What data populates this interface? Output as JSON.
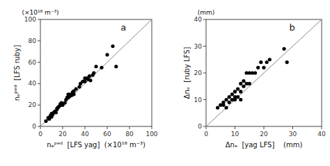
{
  "chart_data": [
    {
      "type": "scatter",
      "x": [
        5,
        7,
        8,
        9,
        10,
        10,
        11,
        12,
        13,
        14,
        15,
        15,
        16,
        17,
        18,
        18,
        19,
        20,
        22,
        23,
        24,
        25,
        25,
        26,
        27,
        28,
        29,
        30,
        30,
        32,
        35,
        36,
        38,
        40,
        40,
        42,
        43,
        44,
        45,
        47,
        48,
        50,
        55,
        60,
        65,
        68
      ],
      "values": [
        5,
        8,
        7,
        10,
        9,
        12,
        11,
        13,
        14,
        13,
        17,
        16,
        18,
        19,
        20,
        21,
        22,
        20,
        22,
        25,
        27,
        27,
        30,
        28,
        30,
        29,
        32,
        30,
        33,
        35,
        37,
        40,
        42,
        42,
        45,
        45,
        44,
        47,
        43,
        48,
        50,
        56,
        55,
        67,
        75,
        56
      ],
      "color": "black",
      "marker": "circle",
      "xlim": [
        0,
        100
      ],
      "ylim": [
        0,
        100
      ],
      "xticks": [
        0,
        20,
        40,
        60,
        80,
        100
      ],
      "yticks": [
        0,
        20,
        40,
        60,
        80,
        100
      ],
      "xlabel": "nₑᵖᵉᵈ  [LFS yag]  (×10¹⁸ m⁻³)",
      "ylabel": "nₑᵖᵉᵈ  [LFS ruby]",
      "annotations": [
        "(×10¹⁸ m⁻³)",
        "a"
      ],
      "grid": false
    },
    {
      "type": "scatter",
      "x": [
        4,
        5,
        6,
        6,
        7,
        7,
        8,
        8,
        9,
        9,
        10,
        10,
        10,
        11,
        11,
        12,
        12,
        12,
        13,
        13,
        14,
        14,
        15,
        15,
        16,
        17,
        18,
        19,
        20,
        21,
        22,
        27,
        28
      ],
      "values": [
        7,
        8,
        8,
        9,
        7,
        10,
        9,
        11,
        10,
        12,
        10,
        11,
        13,
        11,
        14,
        10,
        13,
        16,
        15,
        17,
        16,
        20,
        16,
        20,
        20,
        20,
        22,
        24,
        22,
        24,
        25,
        29,
        24
      ],
      "color": "black",
      "marker": "circle",
      "xlim": [
        0,
        40
      ],
      "ylim": [
        0,
        40
      ],
      "xticks": [
        0,
        10,
        20,
        30,
        40
      ],
      "yticks": [
        0,
        10,
        20,
        30,
        40
      ],
      "xlabel": "Δnₑ  [yag LFS]    (mm)",
      "ylabel": "Δnₑ  [ruby LFS]",
      "annotations": [
        "(mm)",
        "b"
      ],
      "grid": false
    }
  ]
}
